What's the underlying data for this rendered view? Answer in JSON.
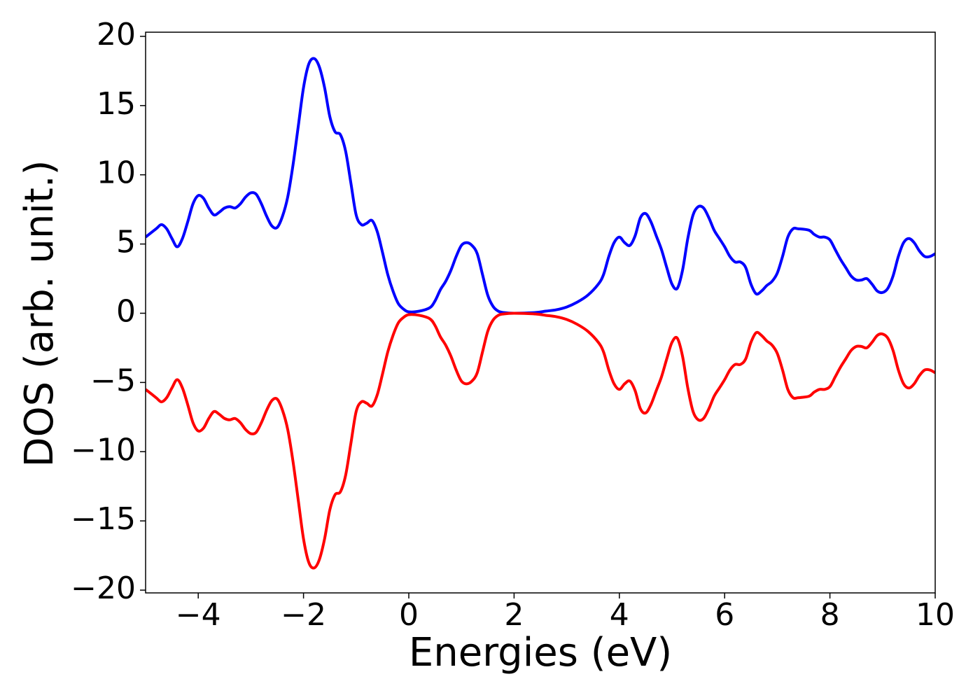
{
  "chart_data": {
    "type": "line",
    "xlabel": "Energies (eV)",
    "ylabel": "DOS (arb. unit.)",
    "x": [
      -5,
      -4.8,
      -4.7,
      -4.6,
      -4.5,
      -4.4,
      -4.3,
      -4.2,
      -4.1,
      -4.0,
      -3.9,
      -3.8,
      -3.7,
      -3.6,
      -3.5,
      -3.4,
      -3.3,
      -3.2,
      -3.1,
      -3.0,
      -2.9,
      -2.8,
      -2.7,
      -2.6,
      -2.5,
      -2.4,
      -2.3,
      -2.2,
      -2.1,
      -2.0,
      -1.9,
      -1.8,
      -1.7,
      -1.6,
      -1.5,
      -1.4,
      -1.3,
      -1.2,
      -1.1,
      -1.0,
      -0.9,
      -0.8,
      -0.7,
      -0.6,
      -0.5,
      -0.4,
      -0.3,
      -0.2,
      -0.1,
      0,
      0.2,
      0.4,
      0.5,
      0.6,
      0.7,
      0.8,
      0.9,
      1.0,
      1.1,
      1.2,
      1.3,
      1.4,
      1.5,
      1.6,
      1.7,
      1.8,
      2.0,
      2.4,
      2.6,
      2.8,
      3.0,
      3.2,
      3.4,
      3.6,
      3.7,
      3.8,
      3.9,
      4.0,
      4.1,
      4.2,
      4.3,
      4.4,
      4.5,
      4.6,
      4.7,
      4.8,
      4.9,
      5.0,
      5.1,
      5.2,
      5.3,
      5.4,
      5.5,
      5.6,
      5.7,
      5.8,
      5.9,
      6.0,
      6.1,
      6.2,
      6.3,
      6.4,
      6.5,
      6.6,
      6.7,
      6.8,
      6.9,
      7.0,
      7.1,
      7.2,
      7.3,
      7.4,
      7.6,
      7.7,
      7.8,
      7.9,
      8.0,
      8.1,
      8.2,
      8.3,
      8.4,
      8.5,
      8.6,
      8.7,
      8.8,
      8.9,
      9.0,
      9.1,
      9.2,
      9.3,
      9.4,
      9.5,
      9.6,
      9.7,
      9.8,
      9.9,
      10
    ],
    "series": [
      {
        "color": "#0000ff",
        "values": [
          5.5,
          6.1,
          6.4,
          6.1,
          5.4,
          4.8,
          5.4,
          6.6,
          7.9,
          8.5,
          8.3,
          7.6,
          7.1,
          7.3,
          7.6,
          7.7,
          7.6,
          7.9,
          8.4,
          8.7,
          8.6,
          7.9,
          7.0,
          6.3,
          6.2,
          7.0,
          8.4,
          10.7,
          13.5,
          16.3,
          18.0,
          18.4,
          17.8,
          16.3,
          14.2,
          13.1,
          12.9,
          11.7,
          9.4,
          7.1,
          6.4,
          6.5,
          6.7,
          5.9,
          4.4,
          2.8,
          1.6,
          0.7,
          0.3,
          0.1,
          0.15,
          0.4,
          0.9,
          1.7,
          2.3,
          3.1,
          4.1,
          4.9,
          5.1,
          4.9,
          4.3,
          2.8,
          1.3,
          0.5,
          0.15,
          0.05,
          0,
          0.05,
          0.15,
          0.25,
          0.45,
          0.8,
          1.3,
          2.1,
          2.8,
          4.1,
          5.1,
          5.5,
          5.1,
          4.9,
          5.6,
          6.9,
          7.2,
          6.6,
          5.6,
          4.6,
          3.3,
          2.1,
          1.8,
          3.1,
          5.4,
          7.1,
          7.7,
          7.6,
          6.9,
          6.0,
          5.4,
          4.8,
          4.1,
          3.7,
          3.7,
          3.3,
          2.1,
          1.4,
          1.6,
          2.0,
          2.3,
          2.9,
          4.1,
          5.5,
          6.1,
          6.1,
          6.0,
          5.7,
          5.5,
          5.5,
          5.3,
          4.6,
          3.9,
          3.3,
          2.7,
          2.4,
          2.4,
          2.5,
          2.1,
          1.6,
          1.5,
          1.8,
          2.7,
          4.1,
          5.1,
          5.4,
          5.1,
          4.5,
          4.1,
          4.1,
          4.3
        ]
      },
      {
        "color": "#ff0000",
        "values": [
          -5.5,
          -6.1,
          -6.4,
          -6.1,
          -5.4,
          -4.8,
          -5.4,
          -6.6,
          -7.9,
          -8.5,
          -8.3,
          -7.6,
          -7.1,
          -7.3,
          -7.6,
          -7.7,
          -7.6,
          -7.9,
          -8.4,
          -8.7,
          -8.6,
          -7.9,
          -7.0,
          -6.3,
          -6.2,
          -7.0,
          -8.4,
          -10.7,
          -13.5,
          -16.3,
          -18.0,
          -18.4,
          -17.8,
          -16.3,
          -14.2,
          -13.1,
          -12.9,
          -11.7,
          -9.4,
          -7.1,
          -6.4,
          -6.5,
          -6.7,
          -5.9,
          -4.4,
          -2.8,
          -1.6,
          -0.7,
          -0.3,
          -0.1,
          -0.15,
          -0.4,
          -0.9,
          -1.7,
          -2.3,
          -3.1,
          -4.1,
          -4.9,
          -5.1,
          -4.9,
          -4.3,
          -2.8,
          -1.3,
          -0.5,
          -0.15,
          -0.05,
          0,
          -0.05,
          -0.15,
          -0.25,
          -0.45,
          -0.8,
          -1.3,
          -2.1,
          -2.8,
          -4.1,
          -5.1,
          -5.5,
          -5.1,
          -4.9,
          -5.6,
          -6.9,
          -7.2,
          -6.6,
          -5.6,
          -4.6,
          -3.3,
          -2.1,
          -1.8,
          -3.1,
          -5.4,
          -7.1,
          -7.7,
          -7.6,
          -6.9,
          -6.0,
          -5.4,
          -4.8,
          -4.1,
          -3.7,
          -3.7,
          -3.3,
          -2.1,
          -1.4,
          -1.6,
          -2.0,
          -2.3,
          -2.9,
          -4.1,
          -5.5,
          -6.1,
          -6.1,
          -6.0,
          -5.7,
          -5.5,
          -5.5,
          -5.3,
          -4.6,
          -3.9,
          -3.3,
          -2.7,
          -2.4,
          -2.4,
          -2.5,
          -2.1,
          -1.6,
          -1.5,
          -1.8,
          -2.7,
          -4.1,
          -5.1,
          -5.4,
          -5.1,
          -4.5,
          -4.1,
          -4.1,
          -4.3
        ]
      }
    ],
    "xlim": [
      -5,
      10
    ],
    "xticks": [
      {
        "value": -4,
        "label": "−4"
      },
      {
        "value": -2,
        "label": "−2"
      },
      0,
      2,
      4,
      6,
      8,
      10
    ],
    "ylim": [
      -20.2,
      20.3
    ],
    "yticks": [
      {
        "value": -20,
        "label": "−20"
      },
      {
        "value": -15,
        "label": "−15"
      },
      {
        "value": -10,
        "label": "−10"
      },
      {
        "value": -5,
        "label": "−5"
      },
      0,
      5,
      10,
      15,
      20
    ],
    "grid": false
  }
}
